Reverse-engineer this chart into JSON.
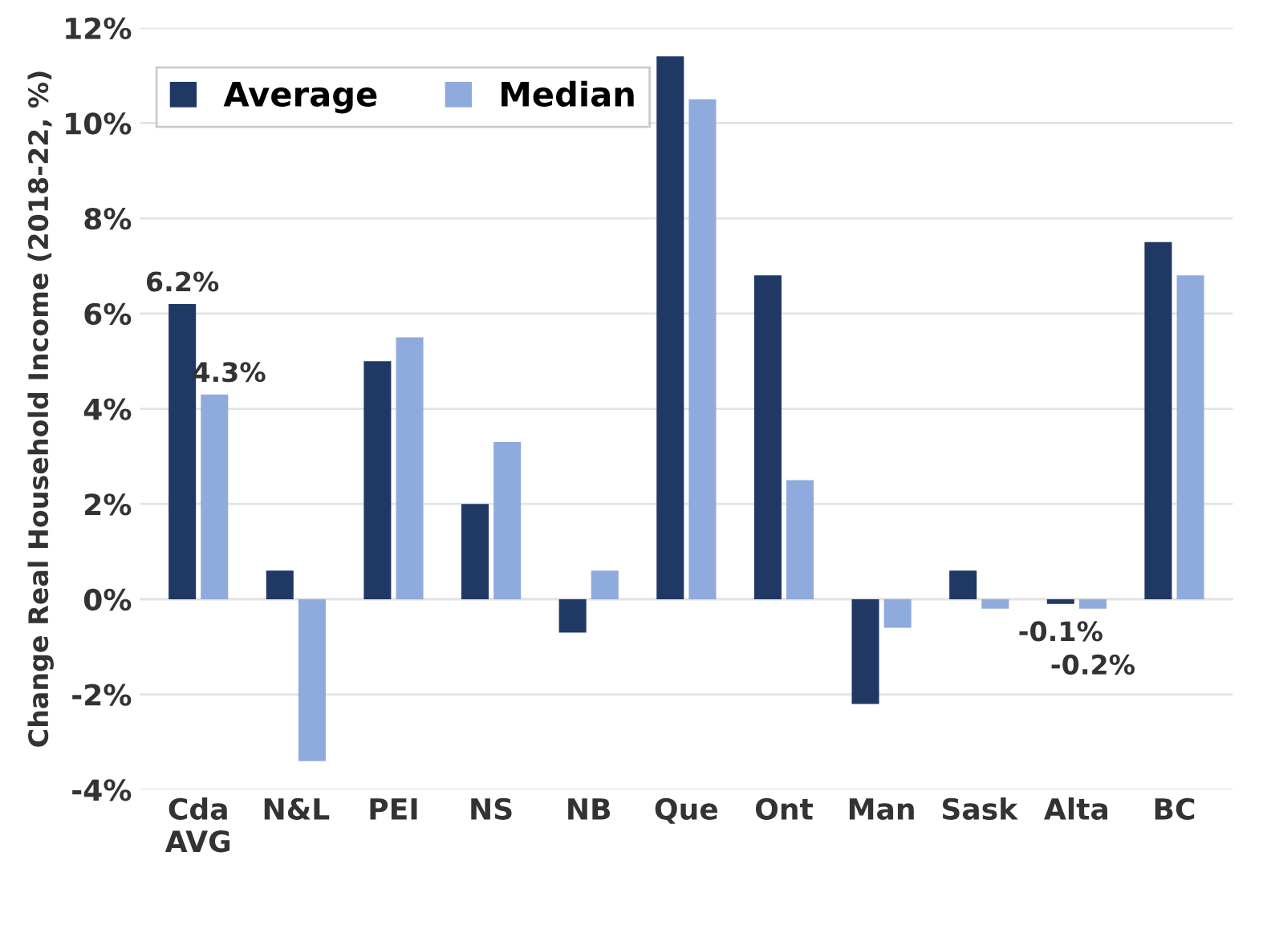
{
  "chart_data": {
    "type": "bar",
    "ylabel": "Change Real Household Income (2018-22, %)",
    "categories": [
      "Cda\nAVG",
      "N&L",
      "PEI",
      "NS",
      "NB",
      "Que",
      "Ont",
      "Man",
      "Sask",
      "Alta",
      "BC"
    ],
    "series": [
      {
        "name": "Average",
        "color": "#1f3864",
        "values": [
          6.2,
          0.6,
          5.0,
          2.0,
          -0.7,
          11.4,
          6.8,
          -2.2,
          0.6,
          -0.1,
          7.5
        ],
        "value_labels": [
          "6.2%",
          null,
          null,
          null,
          null,
          null,
          null,
          null,
          null,
          "-0.1%",
          null
        ]
      },
      {
        "name": "Median",
        "color": "#8faadc",
        "values": [
          4.3,
          -3.4,
          5.5,
          3.3,
          0.6,
          10.5,
          2.5,
          -0.6,
          -0.2,
          -0.2,
          6.8
        ],
        "value_labels": [
          "4.3%",
          null,
          null,
          null,
          null,
          null,
          null,
          null,
          null,
          "-0.2%",
          null
        ]
      }
    ],
    "ylim": [
      -4,
      12
    ],
    "yticks": [
      {
        "value": -4,
        "label": "-4%"
      },
      {
        "value": -2,
        "label": "-2%"
      },
      {
        "value": 0,
        "label": "0%"
      },
      {
        "value": 2,
        "label": "2%"
      },
      {
        "value": 4,
        "label": "4%"
      },
      {
        "value": 6,
        "label": "6%"
      },
      {
        "value": 8,
        "label": "8%"
      },
      {
        "value": 10,
        "label": "10%"
      },
      {
        "value": 12,
        "label": "12%"
      }
    ],
    "grid": "y",
    "legend": "top left"
  }
}
